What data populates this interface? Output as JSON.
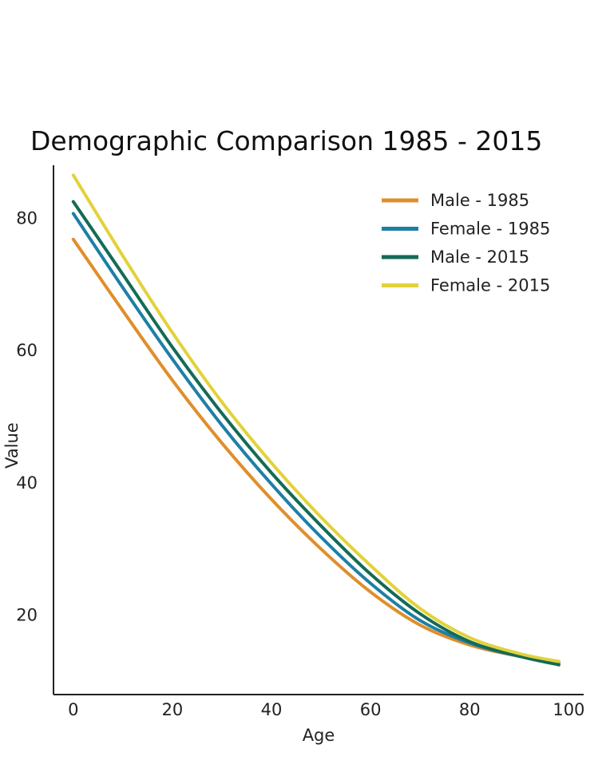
{
  "chart_data": {
    "type": "line",
    "title": "Demographic Comparison 1985 - 2015",
    "xlabel": "Age",
    "ylabel": "Value",
    "xlim": [
      -4,
      103
    ],
    "ylim": [
      8,
      88
    ],
    "xticks": [
      0,
      20,
      40,
      60,
      80,
      100
    ],
    "yticks": [
      20,
      40,
      60,
      80
    ],
    "grid": false,
    "legend_position": "top-right",
    "x": [
      0,
      10,
      20,
      30,
      40,
      50,
      60,
      70,
      80,
      90,
      98
    ],
    "series": [
      {
        "name": "Male - 1985",
        "color": "#E08E2B",
        "values": [
          76.8,
          66.0,
          55.5,
          46.0,
          37.5,
          30.0,
          23.5,
          18.5,
          15.5,
          13.8,
          13.0
        ]
      },
      {
        "name": "Female - 1985",
        "color": "#1E7FA6",
        "values": [
          80.7,
          69.5,
          58.7,
          48.7,
          39.8,
          31.8,
          24.8,
          19.2,
          15.8,
          13.8,
          12.8
        ]
      },
      {
        "name": "Male - 2015",
        "color": "#146B55",
        "values": [
          82.5,
          71.5,
          60.5,
          50.5,
          41.5,
          33.5,
          26.2,
          20.2,
          16.0,
          13.8,
          12.5
        ]
      },
      {
        "name": "Female - 2015",
        "color": "#E2D23A",
        "values": [
          86.5,
          74.3,
          62.7,
          52.2,
          43.0,
          34.8,
          27.5,
          21.0,
          16.6,
          14.2,
          13.0
        ]
      }
    ]
  }
}
